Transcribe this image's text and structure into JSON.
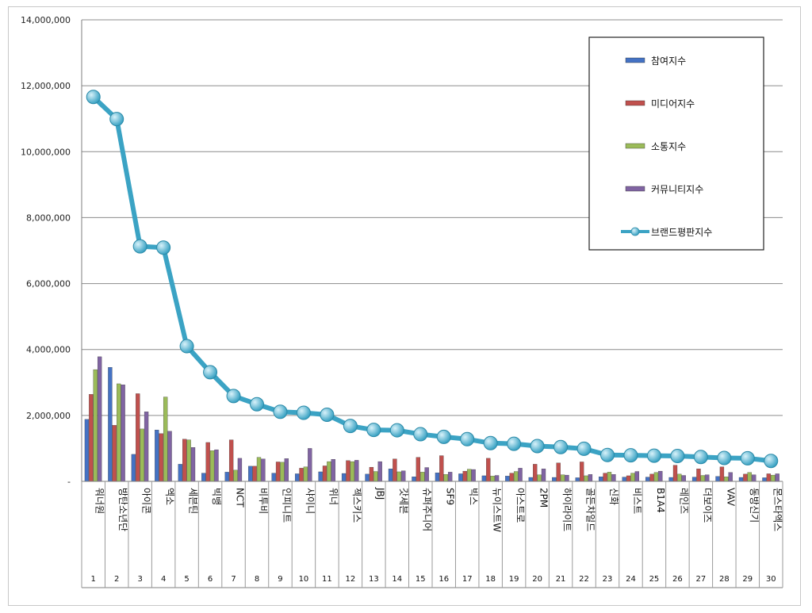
{
  "chart_data": {
    "type": "bar",
    "title": "",
    "xlabel": "",
    "ylabel": "",
    "ylim": [
      0,
      14000000
    ],
    "y_ticks": [
      "-",
      "2,000,000",
      "4,000,000",
      "6,000,000",
      "8,000,000",
      "10,000,000",
      "12,000,000",
      "14,000,000"
    ],
    "grid": true,
    "legend_position": "top-right",
    "categories": [
      "워너원",
      "방탄소년단",
      "아이콘",
      "엑소",
      "세븐틴",
      "빅뱅",
      "NCT",
      "비투비",
      "인피니트",
      "샤이니",
      "위너",
      "젝스키스",
      "JBJ",
      "갓세븐",
      "슈퍼주니어",
      "SF9",
      "빅스",
      "뉴이스트W",
      "아스트로",
      "2PM",
      "하이라이트",
      "골든차일드",
      "신화",
      "비스트",
      "B1A4",
      "레인즈",
      "더보이즈",
      "VAV",
      "동방신기",
      "몬스타엑스"
    ],
    "ranks": [
      "1",
      "2",
      "3",
      "4",
      "5",
      "6",
      "7",
      "8",
      "9",
      "10",
      "11",
      "12",
      "13",
      "14",
      "15",
      "16",
      "17",
      "18",
      "19",
      "20",
      "21",
      "22",
      "23",
      "24",
      "25",
      "26",
      "27",
      "28",
      "29",
      "30"
    ],
    "series": [
      {
        "name": "참여지수",
        "type": "bar",
        "color": "#4472C4",
        "values": [
          1880000,
          3460000,
          820000,
          1560000,
          520000,
          250000,
          280000,
          460000,
          250000,
          230000,
          290000,
          240000,
          220000,
          380000,
          140000,
          260000,
          230000,
          170000,
          160000,
          120000,
          120000,
          110000,
          140000,
          130000,
          130000,
          120000,
          130000,
          150000,
          120000,
          110000
        ]
      },
      {
        "name": "미디어지수",
        "type": "bar",
        "color": "#C0504D",
        "values": [
          2640000,
          1700000,
          2660000,
          1450000,
          1280000,
          1180000,
          1260000,
          460000,
          590000,
          400000,
          470000,
          630000,
          430000,
          680000,
          730000,
          780000,
          310000,
          700000,
          250000,
          520000,
          560000,
          590000,
          250000,
          170000,
          220000,
          490000,
          380000,
          440000,
          220000,
          230000
        ]
      },
      {
        "name": "소통지수",
        "type": "bar",
        "color": "#9BBB59",
        "values": [
          3390000,
          2960000,
          1590000,
          2560000,
          1260000,
          930000,
          340000,
          730000,
          580000,
          440000,
          600000,
          600000,
          300000,
          290000,
          280000,
          210000,
          370000,
          160000,
          300000,
          200000,
          200000,
          170000,
          280000,
          250000,
          270000,
          220000,
          180000,
          140000,
          270000,
          190000
        ]
      },
      {
        "name": "커뮤니티지수",
        "type": "bar",
        "color": "#8064A2",
        "values": [
          3780000,
          2930000,
          2110000,
          1520000,
          1030000,
          960000,
          700000,
          680000,
          690000,
          1000000,
          670000,
          640000,
          600000,
          320000,
          420000,
          280000,
          360000,
          180000,
          400000,
          380000,
          190000,
          210000,
          210000,
          300000,
          310000,
          180000,
          200000,
          270000,
          200000,
          230000
        ]
      },
      {
        "name": "브랜드평판지수",
        "type": "line",
        "color": "#3BA3C4",
        "values": [
          11660000,
          10990000,
          7130000,
          7090000,
          4100000,
          3310000,
          2590000,
          2340000,
          2110000,
          2080000,
          2020000,
          1680000,
          1560000,
          1550000,
          1430000,
          1350000,
          1280000,
          1160000,
          1140000,
          1070000,
          1040000,
          990000,
          800000,
          790000,
          780000,
          770000,
          740000,
          710000,
          700000,
          620000
        ]
      }
    ]
  }
}
